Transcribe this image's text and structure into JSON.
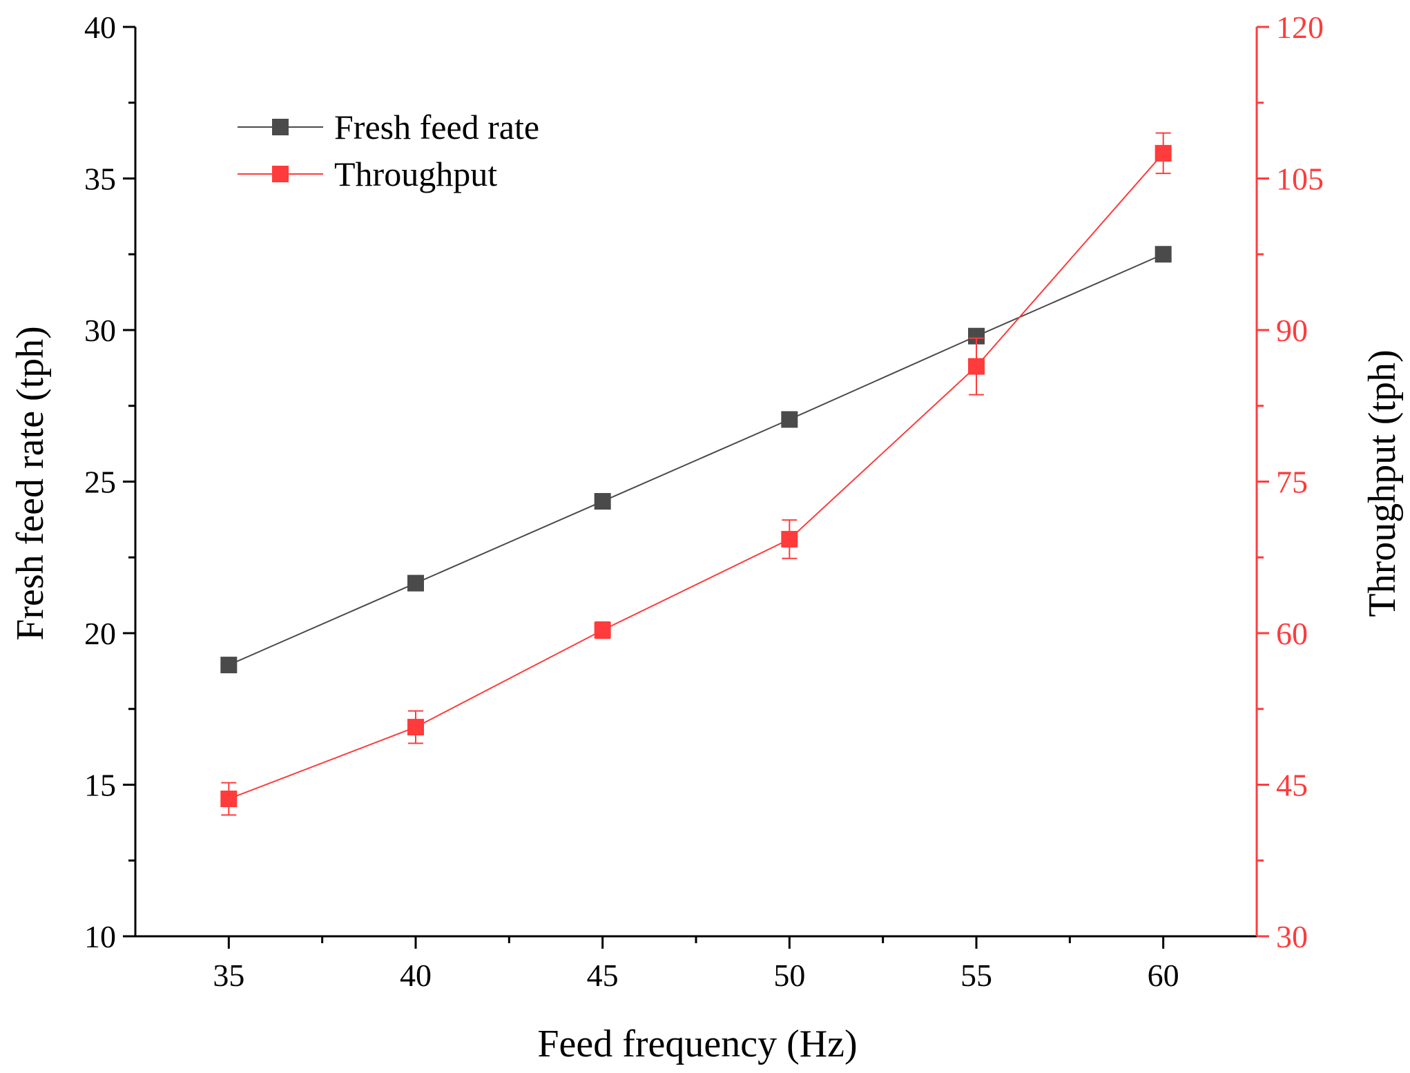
{
  "chart_data": {
    "type": "line",
    "title": "",
    "xlabel": "Feed frequency (Hz)",
    "ylabel_left": "Fresh feed rate  (tph)",
    "ylabel_right": "Throughput (tph)",
    "xlim": [
      32.5,
      62.5
    ],
    "ylim_left": [
      10,
      40
    ],
    "ylim_right": [
      30,
      120
    ],
    "x_ticks": [
      35,
      40,
      45,
      50,
      55,
      60
    ],
    "y_ticks_left": [
      10,
      15,
      20,
      25,
      30,
      35,
      40
    ],
    "y_ticks_right": [
      30,
      45,
      60,
      75,
      90,
      105,
      120
    ],
    "grid": false,
    "legend_position": "top-left",
    "colors": {
      "fresh_feed": "#4a4a4a",
      "throughput": "#ff3b3b",
      "axis_left": "#000000",
      "axis_right": "#ff3b3b"
    },
    "series": [
      {
        "name": "Fresh feed rate",
        "axis": "left",
        "x": [
          35,
          40,
          45,
          50,
          55,
          60
        ],
        "values": [
          18.95,
          21.65,
          24.35,
          27.05,
          29.8,
          32.5
        ]
      },
      {
        "name": "Throughput",
        "axis": "right",
        "x": [
          35,
          40,
          45,
          50,
          55,
          60
        ],
        "values": [
          43.6,
          50.7,
          60.3,
          69.3,
          86.4,
          107.5
        ],
        "error": [
          1.6,
          1.6,
          0.8,
          1.9,
          2.8,
          2.0
        ]
      }
    ]
  }
}
